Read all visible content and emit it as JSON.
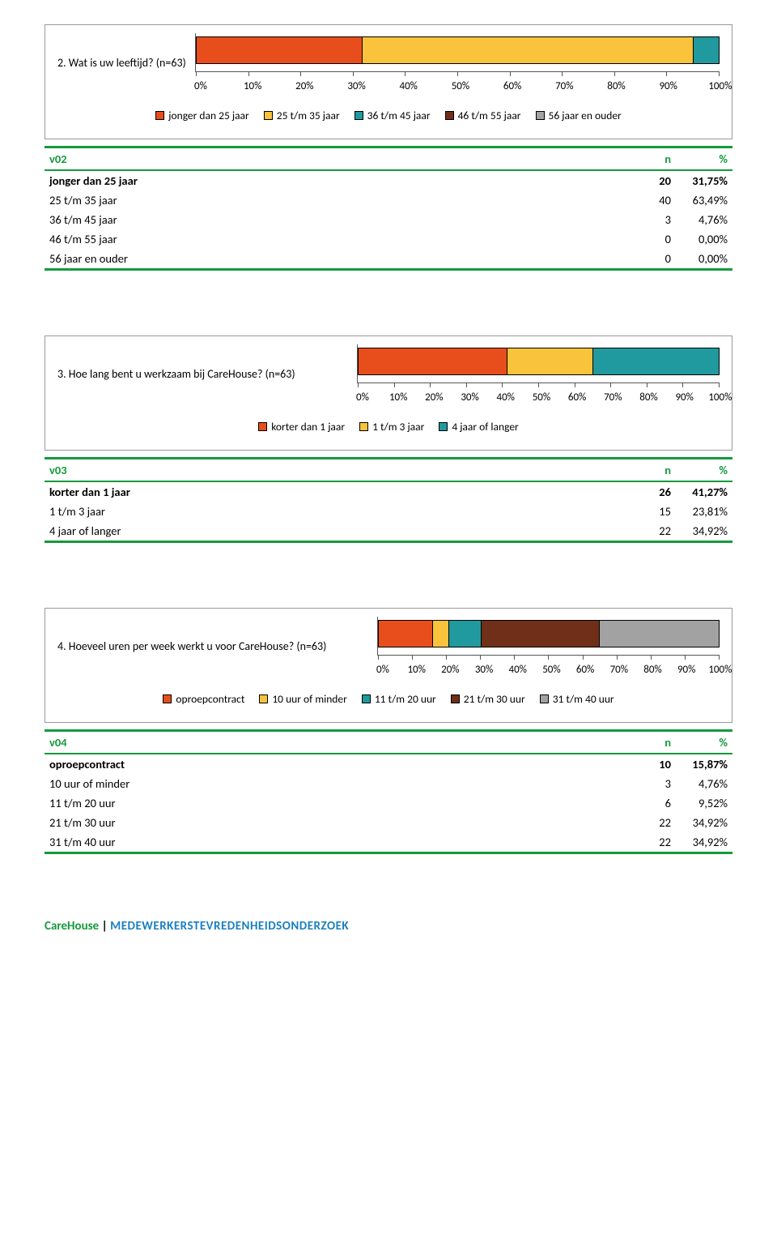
{
  "colors": {
    "red": "#e84e1c",
    "yellow": "#f9c33b",
    "teal": "#209a9e",
    "brown": "#6f2f18",
    "grey": "#a2a2a2",
    "green": "#159a3c"
  },
  "axis_labels": [
    "0%",
    "10%",
    "20%",
    "30%",
    "40%",
    "50%",
    "60%",
    "70%",
    "80%",
    "90%",
    "100%"
  ],
  "q1": {
    "title": "2. Wat is uw leeftijd? (n=63)",
    "segments": [
      {
        "label": "jonger dan 25 jaar",
        "pct": 31.75,
        "color": "#e84e1c"
      },
      {
        "label": "25 t/m 35 jaar",
        "pct": 63.49,
        "color": "#f9c33b"
      },
      {
        "label": "36 t/m 45 jaar",
        "pct": 4.76,
        "color": "#209a9e"
      },
      {
        "label": "46 t/m 55 jaar",
        "pct": 0,
        "color": "#6f2f18"
      },
      {
        "label": "56 jaar en ouder",
        "pct": 0,
        "color": "#a2a2a2"
      }
    ],
    "table": {
      "var": "v02",
      "n_hdr": "n",
      "p_hdr": "%",
      "rows": [
        {
          "label": "jonger dan 25 jaar",
          "n": "20",
          "p": "31,75%"
        },
        {
          "label": "25 t/m 35 jaar",
          "n": "40",
          "p": "63,49%"
        },
        {
          "label": "36 t/m 45 jaar",
          "n": "3",
          "p": "4,76%"
        },
        {
          "label": "46 t/m 55 jaar",
          "n": "0",
          "p": "0,00%"
        },
        {
          "label": "56 jaar en ouder",
          "n": "0",
          "p": "0,00%"
        }
      ]
    }
  },
  "q3": {
    "title": "3. Hoe lang bent u werkzaam bij CareHouse? (n=63)",
    "segments": [
      {
        "label": "korter dan 1 jaar",
        "pct": 41.27,
        "color": "#e84e1c"
      },
      {
        "label": "1 t/m 3 jaar",
        "pct": 23.81,
        "color": "#f9c33b"
      },
      {
        "label": "4 jaar of langer",
        "pct": 34.92,
        "color": "#209a9e"
      }
    ],
    "table": {
      "var": "v03",
      "n_hdr": "n",
      "p_hdr": "%",
      "rows": [
        {
          "label": "korter dan 1 jaar",
          "n": "26",
          "p": "41,27%"
        },
        {
          "label": "1 t/m 3 jaar",
          "n": "15",
          "p": "23,81%"
        },
        {
          "label": "4 jaar of langer",
          "n": "22",
          "p": "34,92%"
        }
      ]
    }
  },
  "q4": {
    "title": "4. Hoeveel uren per week werkt u voor CareHouse? (n=63)",
    "segments": [
      {
        "label": "oproepcontract",
        "pct": 15.87,
        "color": "#e84e1c"
      },
      {
        "label": "10 uur of minder",
        "pct": 4.76,
        "color": "#f9c33b"
      },
      {
        "label": "11 t/m 20 uur",
        "pct": 9.52,
        "color": "#209a9e"
      },
      {
        "label": "21 t/m 30 uur",
        "pct": 34.92,
        "color": "#6f2f18"
      },
      {
        "label": "31 t/m 40 uur",
        "pct": 34.92,
        "color": "#a2a2a2"
      }
    ],
    "table": {
      "var": "v04",
      "n_hdr": "n",
      "p_hdr": "%",
      "rows": [
        {
          "label": "oproepcontract",
          "n": "10",
          "p": "15,87%"
        },
        {
          "label": "10 uur of minder",
          "n": "3",
          "p": "4,76%"
        },
        {
          "label": "11 t/m 20 uur",
          "n": "6",
          "p": "9,52%"
        },
        {
          "label": "21 t/m 30 uur",
          "n": "22",
          "p": "34,92%"
        },
        {
          "label": "31 t/m 40 uur",
          "n": "22",
          "p": "34,92%"
        }
      ]
    }
  },
  "footer": {
    "brand": "CareHouse",
    "sep": " | ",
    "rest": "MEDEWERKERSTEVREDENHEIDSONDERZOEK"
  }
}
